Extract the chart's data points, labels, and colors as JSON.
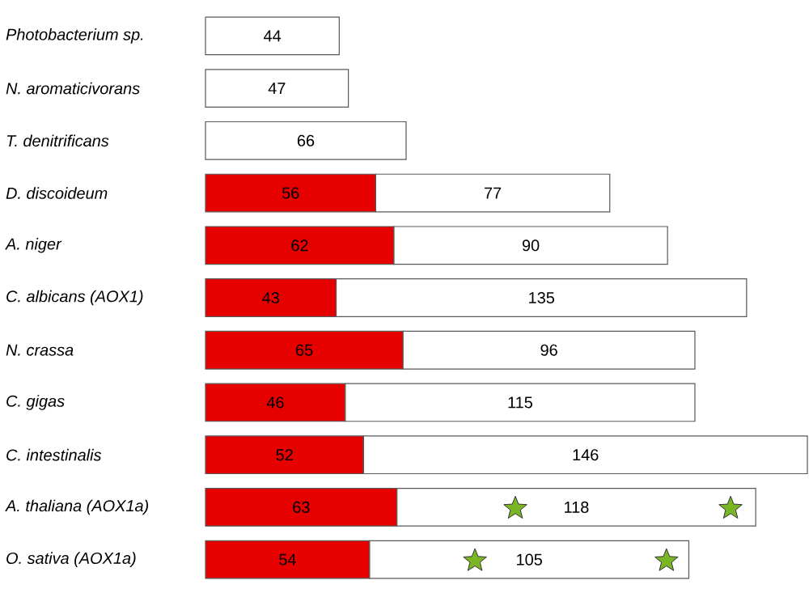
{
  "chart_data": {
    "type": "bar",
    "orientation": "horizontal",
    "stacked": true,
    "data_labels": true,
    "categories": [
      "Photobacterium sp.",
      "N. aromaticivorans",
      "T. denitrificans",
      "D. discoideum",
      "A. niger",
      "C. albicans (AOX1)",
      "N. crassa",
      "C. gigas",
      "C. intestinalis",
      "A. thaliana (AOX1a)",
      "O. sativa (AOX1a)"
    ],
    "series": [
      {
        "color": "#e60000",
        "values": [
          null,
          null,
          null,
          56,
          62,
          43,
          65,
          46,
          52,
          63,
          54
        ]
      },
      {
        "color": "#ffffff",
        "values": [
          44,
          47,
          66,
          77,
          90,
          135,
          96,
          115,
          146,
          118,
          105
        ]
      }
    ]
  }
}
